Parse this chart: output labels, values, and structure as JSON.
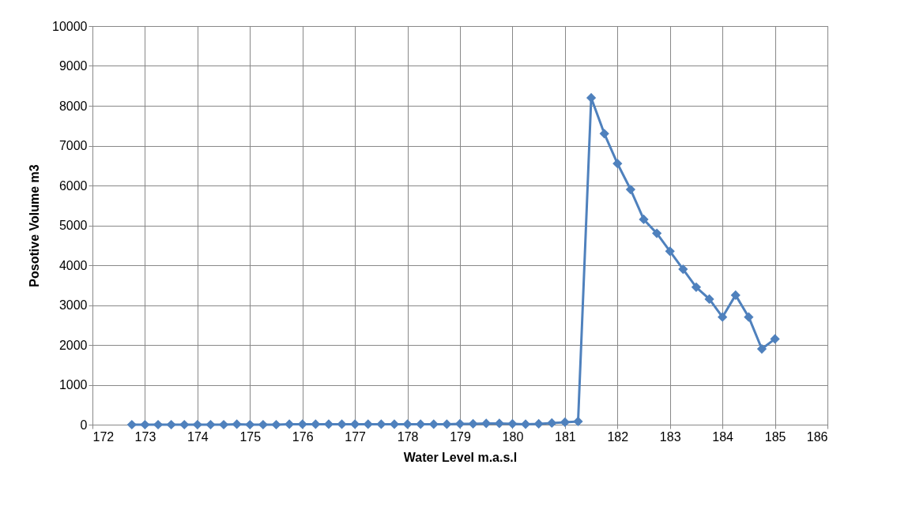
{
  "chart_data": {
    "type": "line",
    "xlabel": "Water Level m.a.s.l",
    "ylabel": "Posotive Volume m3",
    "x": [
      172.75,
      173,
      173.25,
      173.5,
      173.75,
      174,
      174.25,
      174.5,
      174.75,
      175,
      175.25,
      175.5,
      175.75,
      176,
      176.25,
      176.5,
      176.75,
      177,
      177.25,
      177.5,
      177.75,
      178,
      178.25,
      178.5,
      178.75,
      179,
      179.25,
      179.5,
      179.75,
      180,
      180.25,
      180.5,
      180.75,
      181,
      181.25,
      181.5,
      181.75,
      182,
      182.25,
      182.5,
      182.75,
      183,
      183.25,
      183.5,
      183.75,
      184,
      184.25,
      184.5,
      184.75,
      185
    ],
    "series": [
      {
        "color": "#4f81bd",
        "values": [
          0,
          0,
          0,
          0,
          0,
          0,
          0,
          0,
          10,
          0,
          0,
          0,
          10,
          10,
          10,
          10,
          10,
          10,
          10,
          10,
          10,
          10,
          10,
          10,
          10,
          20,
          20,
          30,
          30,
          20,
          10,
          20,
          40,
          60,
          80,
          8200,
          7300,
          6550,
          5900,
          5150,
          4800,
          4350,
          3900,
          3450,
          3150,
          2700,
          3250,
          2700,
          1900,
          2150
        ]
      }
    ],
    "xlim": [
      172,
      186
    ],
    "xticks": [
      172,
      173,
      174,
      175,
      176,
      177,
      178,
      179,
      180,
      181,
      182,
      183,
      184,
      185,
      186
    ],
    "ylim": [
      0,
      10000
    ],
    "yticks": [
      0,
      1000,
      2000,
      3000,
      4000,
      5000,
      6000,
      7000,
      8000,
      9000,
      10000
    ],
    "grid": true,
    "marker": "diamond",
    "line_style": "solid"
  }
}
